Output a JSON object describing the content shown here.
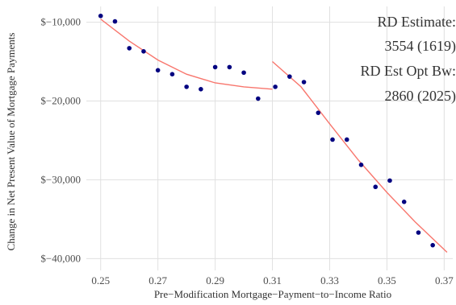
{
  "chart_data": {
    "type": "scatter",
    "title": "",
    "xlabel": "Pre−Modification Mortgage−Payment−to−Income Ratio",
    "ylabel": "Change in Net Present Value of Mortgage Payments",
    "xlim": [
      0.245,
      0.373
    ],
    "ylim": [
      -41500,
      -8000
    ],
    "x_ticks": [
      0.25,
      0.27,
      0.29,
      0.31,
      0.33,
      0.35,
      0.37
    ],
    "x_tick_labels": [
      "0.25",
      "0.27",
      "0.29",
      "0.31",
      "0.33",
      "0.35",
      "0.37"
    ],
    "y_ticks": [
      -10000,
      -20000,
      -30000,
      -40000
    ],
    "y_tick_labels": [
      "$−10,000",
      "$−20,000",
      "$−30,000",
      "$−40,000"
    ],
    "grid": true,
    "cutoff": 0.31,
    "points": [
      {
        "x": 0.25,
        "y": -9200
      },
      {
        "x": 0.255,
        "y": -9900
      },
      {
        "x": 0.26,
        "y": -13300
      },
      {
        "x": 0.265,
        "y": -13700
      },
      {
        "x": 0.27,
        "y": -16100
      },
      {
        "x": 0.275,
        "y": -16600
      },
      {
        "x": 0.28,
        "y": -18200
      },
      {
        "x": 0.285,
        "y": -18500
      },
      {
        "x": 0.29,
        "y": -15700
      },
      {
        "x": 0.295,
        "y": -15700
      },
      {
        "x": 0.3,
        "y": -16400
      },
      {
        "x": 0.305,
        "y": -19700
      },
      {
        "x": 0.311,
        "y": -18200
      },
      {
        "x": 0.316,
        "y": -16900
      },
      {
        "x": 0.321,
        "y": -17600
      },
      {
        "x": 0.326,
        "y": -21500
      },
      {
        "x": 0.331,
        "y": -24900
      },
      {
        "x": 0.336,
        "y": -24900
      },
      {
        "x": 0.341,
        "y": -28100
      },
      {
        "x": 0.346,
        "y": -30900
      },
      {
        "x": 0.351,
        "y": -30100
      },
      {
        "x": 0.356,
        "y": -32800
      },
      {
        "x": 0.361,
        "y": -36700
      },
      {
        "x": 0.366,
        "y": -38300
      }
    ],
    "fit_left": [
      {
        "x": 0.25,
        "y": -9600
      },
      {
        "x": 0.26,
        "y": -12400
      },
      {
        "x": 0.27,
        "y": -14800
      },
      {
        "x": 0.28,
        "y": -16600
      },
      {
        "x": 0.29,
        "y": -17700
      },
      {
        "x": 0.3,
        "y": -18200
      },
      {
        "x": 0.31,
        "y": -18500
      }
    ],
    "fit_right": [
      {
        "x": 0.31,
        "y": -15000
      },
      {
        "x": 0.32,
        "y": -18200
      },
      {
        "x": 0.33,
        "y": -22900
      },
      {
        "x": 0.34,
        "y": -27500
      },
      {
        "x": 0.35,
        "y": -31600
      },
      {
        "x": 0.36,
        "y": -35400
      },
      {
        "x": 0.371,
        "y": -39200
      }
    ],
    "point_color": "#000080",
    "fit_color": "#f8766d",
    "grid_color": "#e0e0e0"
  },
  "annotations": {
    "rd_estimate_label": "RD Estimate:",
    "rd_estimate_value": "3554 (1619)",
    "rd_opt_bw_label": "RD Est Opt Bw:",
    "rd_opt_bw_value": "2860 (2025)"
  }
}
